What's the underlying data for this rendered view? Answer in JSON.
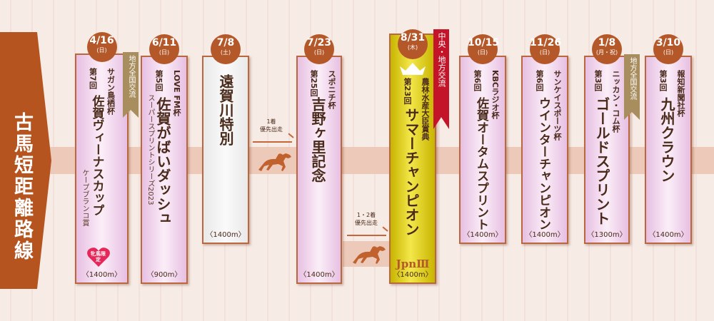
{
  "route_title": "古馬短距離路線",
  "colors": {
    "banner": "#b5541f",
    "date_circle": "#b4582a",
    "gold_ribbon": "#a88d5e",
    "red_ribbon": "#c4142a",
    "text": "#4a2a1a"
  },
  "races": [
    {
      "date": "4/16",
      "weekday": "(日)",
      "sponsor": "サガン鳥栖杯",
      "edition": "第7回",
      "title": "佐賀ヴィーナスカップ",
      "subtitle": "ケープブランコ賞",
      "distance": "〈1400m〉",
      "ribbon": "地方全国交流",
      "badge": "牝馬限定",
      "style": "pink"
    },
    {
      "date": "6/11",
      "weekday": "(日)",
      "sponsor": "LOVE FM杯",
      "edition": "第5回",
      "title": "佐賀がばいダッシュ",
      "subtitle": "スーパースプリントシリーズ2023",
      "distance": "〈900m〉",
      "style": "pink"
    },
    {
      "date": "7/8",
      "weekday": "(土)",
      "title": "遠賀川特別",
      "distance": "〈1400m〉",
      "style": "white"
    },
    {
      "date": "7/23",
      "weekday": "(日)",
      "sponsor": "スポニチ杯",
      "edition": "第25回",
      "title": "吉野ヶ里記念",
      "distance": "〈1400m〉",
      "style": "pink"
    },
    {
      "date": "8/31",
      "weekday": "(木)",
      "sponsor": "農林水産大臣賞典",
      "edition": "第23回",
      "title": "サマーチャンピオン",
      "grade": "JpnⅢ",
      "distance": "〈1400m〉",
      "ribbon": "中央・地方交流",
      "crown_icon": "crown-icon",
      "style": "gold"
    },
    {
      "date": "10/15",
      "weekday": "(日)",
      "sponsor": "KBCラジオ杯",
      "edition": "第6回",
      "title": "佐賀オータムスプリント",
      "distance": "〈1400m〉",
      "style": "pink"
    },
    {
      "date": "11/26",
      "weekday": "(日)",
      "sponsor": "サンケイスポーツ杯",
      "edition": "第6回",
      "title": "ウインターチャンピオン",
      "distance": "〈1400m〉",
      "style": "pink"
    },
    {
      "date": "1/8",
      "weekday": "(月・祝)",
      "sponsor": "ニッカン・コム杯",
      "edition": "第3回",
      "title": "ゴールドスプリント",
      "distance": "〈1300m〉",
      "ribbon": "地方全国交流",
      "style": "pink"
    },
    {
      "date": "3/10",
      "weekday": "(日)",
      "sponsor": "報知新聞社杯",
      "edition": "第3回",
      "title": "九州クラウン",
      "distance": "〈1400m〉",
      "style": "pink"
    }
  ],
  "qualifiers": [
    {
      "place": "1着",
      "label": "優先出走",
      "icon": "horse-icon"
    },
    {
      "place": "1・2着",
      "label": "優先出走",
      "icon": "horse-icon"
    }
  ]
}
